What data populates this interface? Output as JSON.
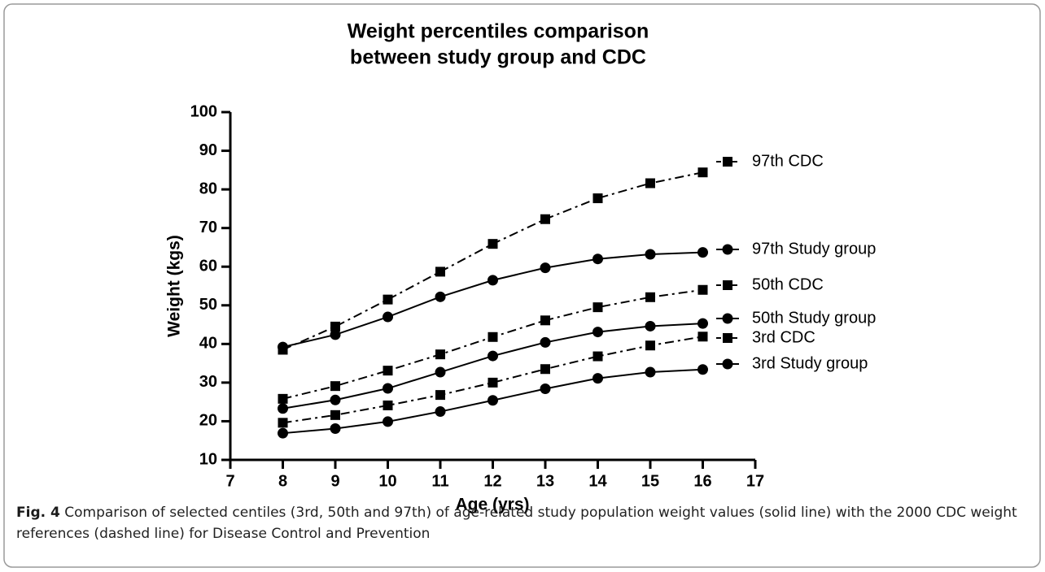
{
  "chart_data": {
    "type": "line",
    "title": [
      "Weight percentiles comparison",
      "between study group and CDC"
    ],
    "xlabel": "Age (yrs)",
    "ylabel": "Weight (kgs)",
    "x": [
      8,
      9,
      10,
      11,
      12,
      13,
      14,
      15,
      16
    ],
    "xlim": [
      7,
      17
    ],
    "xticks": [
      7,
      8,
      9,
      10,
      11,
      12,
      13,
      14,
      15,
      16,
      17
    ],
    "ylim": [
      10,
      100
    ],
    "yticks": [
      10,
      20,
      30,
      40,
      50,
      60,
      70,
      80,
      90,
      100
    ],
    "series": [
      {
        "name": "97th CDC",
        "color": "#000000",
        "marker": "square",
        "dash": "dashdot",
        "values": [
          38.5,
          44.5,
          51.5,
          58.7,
          65.9,
          72.3,
          77.7,
          81.6,
          84.4
        ]
      },
      {
        "name": "97th Study group",
        "color": "#000000",
        "marker": "circle",
        "dash": "solid",
        "values": [
          39.2,
          42.4,
          47.0,
          52.2,
          56.5,
          59.7,
          62.0,
          63.2,
          63.7
        ]
      },
      {
        "name": "50th CDC",
        "color": "#000000",
        "marker": "square",
        "dash": "dashdot",
        "values": [
          25.8,
          29.1,
          33.1,
          37.3,
          41.8,
          46.1,
          49.5,
          52.1,
          54.0
        ]
      },
      {
        "name": "50th Study group",
        "color": "#000000",
        "marker": "circle",
        "dash": "solid",
        "values": [
          23.3,
          25.5,
          28.5,
          32.7,
          36.9,
          40.4,
          43.1,
          44.6,
          45.3
        ]
      },
      {
        "name": "3rd CDC",
        "color": "#000000",
        "marker": "square",
        "dash": "dashdot",
        "values": [
          19.6,
          21.6,
          24.1,
          26.8,
          30.0,
          33.5,
          36.8,
          39.6,
          41.9
        ]
      },
      {
        "name": "3rd Study group",
        "color": "#000000",
        "marker": "circle",
        "dash": "solid",
        "values": [
          16.9,
          18.1,
          19.9,
          22.5,
          25.4,
          28.4,
          31.1,
          32.7,
          33.4
        ]
      }
    ]
  },
  "caption": {
    "label": "Fig. 4",
    "text": "Comparison of selected centiles (3rd, 50th and 97th) of age-related study population weight values (solid line) with the 2000 CDC weight references (dashed line) for Disease Control and Prevention"
  }
}
